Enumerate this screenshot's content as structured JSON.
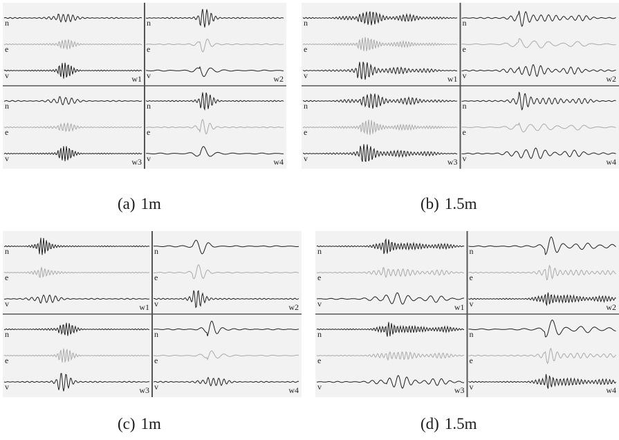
{
  "colors": {
    "trace_dark": "#1e1e1e",
    "trace_light": "#a9a9a9",
    "divider": "#555555",
    "panel_bg": "#f2f2f2"
  },
  "panels": [
    {
      "id": "a",
      "caption_letter": "(a)",
      "caption_text": "1m",
      "wells": [
        {
          "label": "w1",
          "channels": [
            "n",
            "e",
            "v"
          ]
        },
        {
          "label": "w2",
          "channels": [
            "n",
            "e",
            "v"
          ]
        },
        {
          "label": "w3",
          "channels": [
            "n",
            "e",
            "v"
          ]
        },
        {
          "label": "w4",
          "channels": [
            "n",
            "e",
            "v"
          ]
        }
      ]
    },
    {
      "id": "b",
      "caption_letter": "(b)",
      "caption_text": "1.5m",
      "wells": [
        {
          "label": "w1",
          "channels": [
            "n",
            "e",
            "v"
          ]
        },
        {
          "label": "w2",
          "channels": [
            "n",
            "e",
            "v"
          ]
        },
        {
          "label": "w3",
          "channels": [
            "n",
            "e",
            "v"
          ]
        },
        {
          "label": "w4",
          "channels": [
            "n",
            "e",
            "v"
          ]
        }
      ]
    },
    {
      "id": "c",
      "caption_letter": "(c)",
      "caption_text": "1m",
      "wells": [
        {
          "label": "w1",
          "channels": [
            "n",
            "e",
            "v"
          ]
        },
        {
          "label": "w2",
          "channels": [
            "n",
            "e",
            "v"
          ]
        },
        {
          "label": "w3",
          "channels": [
            "n",
            "e",
            "v"
          ]
        },
        {
          "label": "w4",
          "channels": [
            "n",
            "e",
            "v"
          ]
        }
      ]
    },
    {
      "id": "d",
      "caption_letter": "(d)",
      "caption_text": "1.5m",
      "wells": [
        {
          "label": "w1",
          "channels": [
            "n",
            "e",
            "v"
          ]
        },
        {
          "label": "w2",
          "channels": [
            "n",
            "e",
            "v"
          ]
        },
        {
          "label": "w3",
          "channels": [
            "n",
            "e",
            "v"
          ]
        },
        {
          "label": "w4",
          "channels": [
            "n",
            "e",
            "v"
          ]
        }
      ]
    }
  ]
}
